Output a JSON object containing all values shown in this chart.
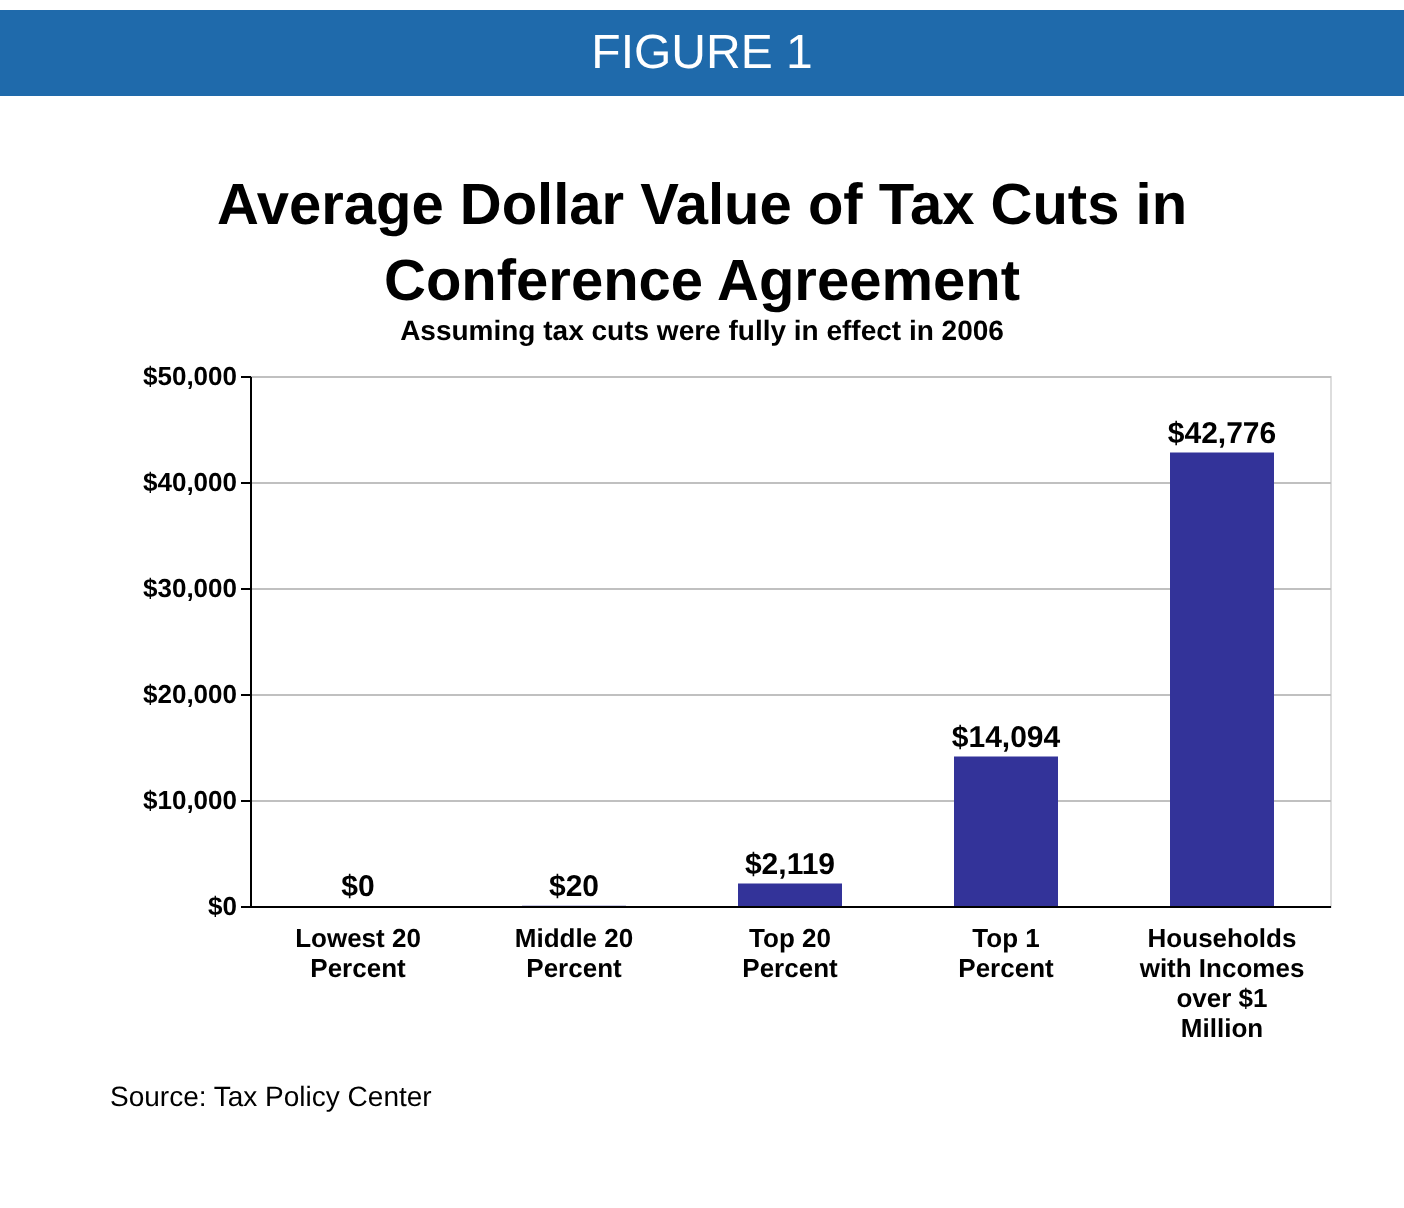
{
  "chart_data": {
    "type": "bar",
    "title": "Average Dollar Value of Tax Cuts in Conference Agreement",
    "subtitle": "Assuming tax cuts were fully in effect in 2006",
    "categories": [
      "Lowest 20 Percent",
      "Middle 20 Percent",
      "Top 20 Percent",
      "Top 1 Percent",
      "Households with Incomes over $1 Million"
    ],
    "values": [
      0,
      20,
      2119,
      14094,
      42776
    ],
    "color": "#333399",
    "ylim": [
      0,
      50000
    ],
    "yticks": [
      {
        "value": 0,
        "label": "$0"
      },
      {
        "value": 10000,
        "label": "$10,000"
      },
      {
        "value": 20000,
        "label": "$20,000"
      },
      {
        "value": 30000,
        "label": "$30,000"
      },
      {
        "value": 40000,
        "label": "$40,000"
      },
      {
        "value": 50000,
        "label": "$50,000"
      }
    ],
    "grid": "y",
    "value_labels": [
      "$0",
      "$20",
      "$2,119",
      "$14,094",
      "$42,776"
    ],
    "annotations": [
      "FIGURE 1",
      "Source: Tax Policy Center"
    ]
  }
}
